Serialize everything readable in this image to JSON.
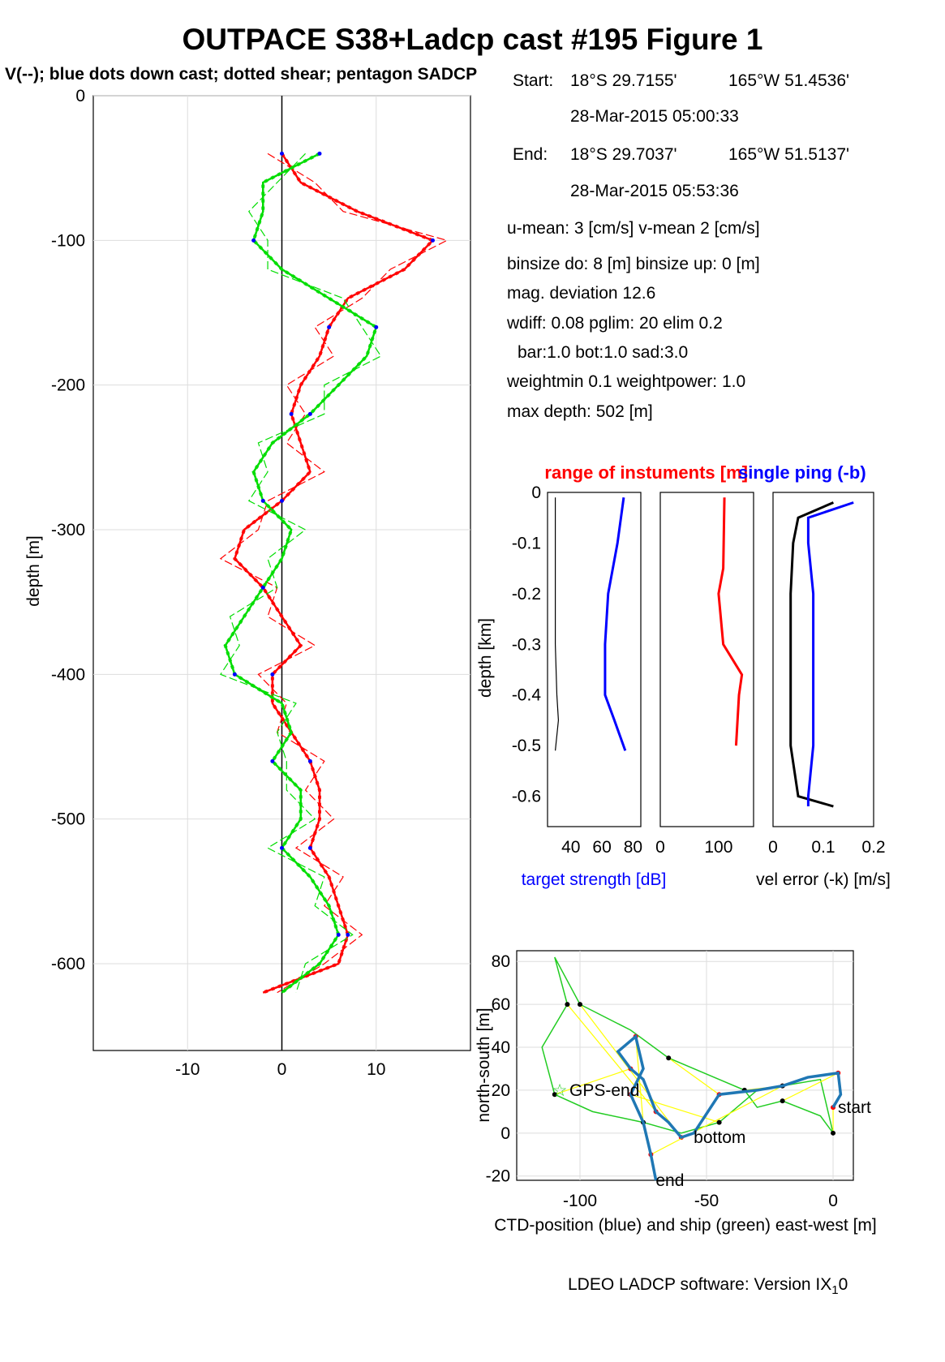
{
  "title": "OUTPACE S38+Ladcp cast #195  Figure 1",
  "subtitle": "V(--); blue dots down cast; dotted shear; pentagon SADCP",
  "info": {
    "start_label": "Start:",
    "start_lat": "18°S 29.7155'",
    "start_lon": "165°W 51.4536'",
    "start_time": "28-Mar-2015 05:00:33",
    "end_label": "End:",
    "end_lat": "18°S 29.7037'",
    "end_lon": "165°W 51.5137'",
    "end_time": "28-Mar-2015 05:53:36",
    "means": "u-mean:   3 [cm/s]    v-mean   2 [cm/s]",
    "binsize": "binsize do: 8 [m]  binsize up:  0 [m]",
    "magdev": "mag. deviation 12.6",
    "wdiff": "wdiff: 0.08  pglim: 20  elim 0.2",
    "bar": "bar:1.0 bot:1.0 sad:3.0",
    "weight": "weightmin 0.1  weightpower: 1.0",
    "maxdepth": "max depth: 502 [m]"
  },
  "footer": "LDEO LADCP software: Version IX",
  "footer_sub": "1",
  "footer_end": "0",
  "colors": {
    "u": "#ff0000",
    "v": "#00dd00",
    "blue": "#0000ff",
    "ctd": "#1f77b4",
    "ship": "#22cc22",
    "link": "#ffff00"
  },
  "chart_data": [
    {
      "type": "line",
      "name": "velocity-profile",
      "ylabel": "depth [m]",
      "xlabel": "",
      "xlim": [
        -20,
        20
      ],
      "ylim": [
        -660,
        0
      ],
      "xticks": [
        -10,
        0,
        10
      ],
      "yticks": [
        0,
        -100,
        -200,
        -300,
        -400,
        -500,
        -600
      ],
      "grid": true,
      "depth": [
        -40,
        -60,
        -80,
        -100,
        -120,
        -140,
        -160,
        -180,
        -200,
        -220,
        -240,
        -260,
        -280,
        -300,
        -320,
        -340,
        -360,
        -380,
        -400,
        -420,
        -440,
        -460,
        -480,
        -500,
        -520,
        -540,
        -560,
        -580,
        -600,
        -620
      ],
      "series": [
        {
          "name": "u",
          "color": "#ff0000",
          "values": [
            0,
            2,
            8,
            16,
            13,
            7,
            5,
            4,
            2,
            1,
            2,
            3,
            0,
            -4,
            -5,
            -2,
            0,
            2,
            -1,
            -1,
            1,
            3,
            4,
            4,
            3,
            5,
            6,
            7,
            6,
            -2
          ]
        },
        {
          "name": "v",
          "color": "#00dd00",
          "values": [
            4,
            -2,
            -2,
            -3,
            0,
            5,
            10,
            9,
            6,
            3,
            -1,
            -3,
            -2,
            1,
            0,
            -2,
            -4,
            -6,
            -5,
            0,
            1,
            -1,
            2,
            2,
            0,
            3,
            5,
            6,
            4,
            0
          ]
        }
      ]
    },
    {
      "type": "line",
      "name": "target-strength",
      "title": "range of instuments [m]",
      "title2": "single ping (-b)",
      "ylabel": "depth [km]",
      "xlabel": "target strength [dB]",
      "xlim": [
        25,
        85
      ],
      "ylim": [
        -0.66,
        0
      ],
      "xticks": [
        40,
        60,
        80
      ],
      "yticks": [
        0,
        -0.1,
        -0.2,
        -0.3,
        -0.4,
        -0.5,
        -0.6
      ],
      "depth": [
        -0.01,
        -0.1,
        -0.2,
        -0.3,
        -0.4,
        -0.45,
        -0.51
      ],
      "series": [
        {
          "name": "",
          "color": "#0000ff",
          "values": [
            74,
            70,
            64,
            62,
            62,
            68,
            75
          ]
        },
        {
          "name": "",
          "color": "#000000",
          "values": [
            30,
            30,
            30,
            30,
            31,
            32,
            30
          ]
        }
      ]
    },
    {
      "type": "line",
      "name": "range",
      "xlim": [
        0,
        160
      ],
      "ylim": [
        -0.66,
        0
      ],
      "xticks": [
        0,
        100
      ],
      "depth": [
        -0.01,
        -0.15,
        -0.2,
        -0.3,
        -0.36,
        -0.4,
        -0.5
      ],
      "series": [
        {
          "name": "",
          "color": "#ff0000",
          "values": [
            110,
            108,
            100,
            108,
            140,
            135,
            130
          ]
        }
      ]
    },
    {
      "type": "line",
      "name": "vel-error",
      "xlabel": "vel error (-k) [m/s]",
      "xlim": [
        0,
        0.2
      ],
      "ylim": [
        -0.66,
        0
      ],
      "xticks": [
        0,
        0.1,
        0.2
      ],
      "depth": [
        -0.02,
        -0.05,
        -0.1,
        -0.2,
        -0.3,
        -0.4,
        -0.5,
        -0.6,
        -0.62
      ],
      "series": [
        {
          "name": "",
          "color": "#000000",
          "values": [
            0.12,
            0.05,
            0.04,
            0.035,
            0.035,
            0.035,
            0.035,
            0.05,
            0.12
          ]
        },
        {
          "name": "",
          "color": "#0000ff",
          "values": [
            0.16,
            0.07,
            0.07,
            0.08,
            0.08,
            0.08,
            0.08,
            0.07,
            0.07
          ]
        }
      ]
    },
    {
      "type": "line",
      "name": "position",
      "ylabel": "north-south [m]",
      "xlabel": "CTD-position (blue) and ship (green) east-west [m]",
      "xlim": [
        -125,
        8
      ],
      "ylim": [
        -22,
        85
      ],
      "xticks": [
        -100,
        -50,
        0
      ],
      "yticks": [
        80,
        60,
        40,
        20,
        0,
        -20
      ],
      "labels": [
        "GPS-end",
        "start",
        "bottom",
        "end"
      ],
      "ctd_x": [
        0,
        3,
        2,
        -10,
        -20,
        -30,
        -45,
        -55,
        -60,
        -65,
        -70,
        -75,
        -80,
        -85,
        -78,
        -75,
        -80,
        -75,
        -72,
        -70
      ],
      "ctd_y": [
        12,
        18,
        28,
        26,
        22,
        20,
        18,
        0,
        -2,
        5,
        10,
        25,
        30,
        38,
        45,
        30,
        18,
        5,
        -10,
        -22
      ],
      "ship_x": [
        0,
        -5,
        -20,
        -30,
        -35,
        -45,
        -65,
        -80,
        -100,
        -110,
        -105,
        -115,
        -110,
        -95,
        -75,
        -60,
        -45,
        -30,
        -20,
        -5,
        0
      ],
      "ship_y": [
        0,
        8,
        15,
        12,
        20,
        25,
        35,
        48,
        60,
        82,
        60,
        40,
        18,
        10,
        5,
        0,
        5,
        20,
        22,
        25,
        0
      ]
    }
  ]
}
